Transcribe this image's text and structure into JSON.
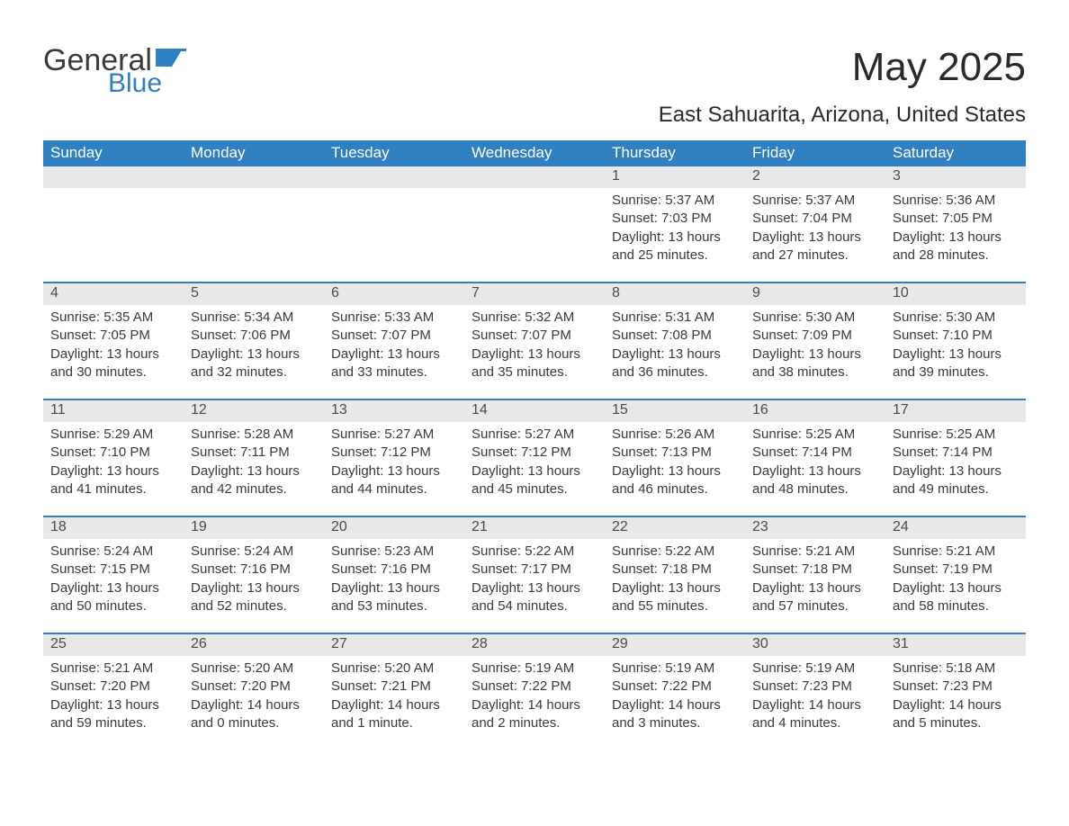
{
  "logo": {
    "text_general": "General",
    "text_blue": "Blue",
    "flag_color": "#2f7fc1"
  },
  "title": "May 2025",
  "location": "East Sahuarita, Arizona, United States",
  "colors": {
    "header_bg": "#2f7fc1",
    "header_text": "#ffffff",
    "daynum_bg": "#e8e8e8",
    "body_text": "#3a3a3a",
    "background": "#ffffff",
    "row_divider": "#2f7fc1"
  },
  "typography": {
    "title_fontsize": 44,
    "location_fontsize": 24,
    "weekday_fontsize": 17,
    "daynum_fontsize": 16,
    "body_fontsize": 15
  },
  "weekdays": [
    "Sunday",
    "Monday",
    "Tuesday",
    "Wednesday",
    "Thursday",
    "Friday",
    "Saturday"
  ],
  "weeks": [
    [
      null,
      null,
      null,
      null,
      {
        "n": "1",
        "sunrise": "Sunrise: 5:37 AM",
        "sunset": "Sunset: 7:03 PM",
        "daylight": "Daylight: 13 hours and 25 minutes."
      },
      {
        "n": "2",
        "sunrise": "Sunrise: 5:37 AM",
        "sunset": "Sunset: 7:04 PM",
        "daylight": "Daylight: 13 hours and 27 minutes."
      },
      {
        "n": "3",
        "sunrise": "Sunrise: 5:36 AM",
        "sunset": "Sunset: 7:05 PM",
        "daylight": "Daylight: 13 hours and 28 minutes."
      }
    ],
    [
      {
        "n": "4",
        "sunrise": "Sunrise: 5:35 AM",
        "sunset": "Sunset: 7:05 PM",
        "daylight": "Daylight: 13 hours and 30 minutes."
      },
      {
        "n": "5",
        "sunrise": "Sunrise: 5:34 AM",
        "sunset": "Sunset: 7:06 PM",
        "daylight": "Daylight: 13 hours and 32 minutes."
      },
      {
        "n": "6",
        "sunrise": "Sunrise: 5:33 AM",
        "sunset": "Sunset: 7:07 PM",
        "daylight": "Daylight: 13 hours and 33 minutes."
      },
      {
        "n": "7",
        "sunrise": "Sunrise: 5:32 AM",
        "sunset": "Sunset: 7:07 PM",
        "daylight": "Daylight: 13 hours and 35 minutes."
      },
      {
        "n": "8",
        "sunrise": "Sunrise: 5:31 AM",
        "sunset": "Sunset: 7:08 PM",
        "daylight": "Daylight: 13 hours and 36 minutes."
      },
      {
        "n": "9",
        "sunrise": "Sunrise: 5:30 AM",
        "sunset": "Sunset: 7:09 PM",
        "daylight": "Daylight: 13 hours and 38 minutes."
      },
      {
        "n": "10",
        "sunrise": "Sunrise: 5:30 AM",
        "sunset": "Sunset: 7:10 PM",
        "daylight": "Daylight: 13 hours and 39 minutes."
      }
    ],
    [
      {
        "n": "11",
        "sunrise": "Sunrise: 5:29 AM",
        "sunset": "Sunset: 7:10 PM",
        "daylight": "Daylight: 13 hours and 41 minutes."
      },
      {
        "n": "12",
        "sunrise": "Sunrise: 5:28 AM",
        "sunset": "Sunset: 7:11 PM",
        "daylight": "Daylight: 13 hours and 42 minutes."
      },
      {
        "n": "13",
        "sunrise": "Sunrise: 5:27 AM",
        "sunset": "Sunset: 7:12 PM",
        "daylight": "Daylight: 13 hours and 44 minutes."
      },
      {
        "n": "14",
        "sunrise": "Sunrise: 5:27 AM",
        "sunset": "Sunset: 7:12 PM",
        "daylight": "Daylight: 13 hours and 45 minutes."
      },
      {
        "n": "15",
        "sunrise": "Sunrise: 5:26 AM",
        "sunset": "Sunset: 7:13 PM",
        "daylight": "Daylight: 13 hours and 46 minutes."
      },
      {
        "n": "16",
        "sunrise": "Sunrise: 5:25 AM",
        "sunset": "Sunset: 7:14 PM",
        "daylight": "Daylight: 13 hours and 48 minutes."
      },
      {
        "n": "17",
        "sunrise": "Sunrise: 5:25 AM",
        "sunset": "Sunset: 7:14 PM",
        "daylight": "Daylight: 13 hours and 49 minutes."
      }
    ],
    [
      {
        "n": "18",
        "sunrise": "Sunrise: 5:24 AM",
        "sunset": "Sunset: 7:15 PM",
        "daylight": "Daylight: 13 hours and 50 minutes."
      },
      {
        "n": "19",
        "sunrise": "Sunrise: 5:24 AM",
        "sunset": "Sunset: 7:16 PM",
        "daylight": "Daylight: 13 hours and 52 minutes."
      },
      {
        "n": "20",
        "sunrise": "Sunrise: 5:23 AM",
        "sunset": "Sunset: 7:16 PM",
        "daylight": "Daylight: 13 hours and 53 minutes."
      },
      {
        "n": "21",
        "sunrise": "Sunrise: 5:22 AM",
        "sunset": "Sunset: 7:17 PM",
        "daylight": "Daylight: 13 hours and 54 minutes."
      },
      {
        "n": "22",
        "sunrise": "Sunrise: 5:22 AM",
        "sunset": "Sunset: 7:18 PM",
        "daylight": "Daylight: 13 hours and 55 minutes."
      },
      {
        "n": "23",
        "sunrise": "Sunrise: 5:21 AM",
        "sunset": "Sunset: 7:18 PM",
        "daylight": "Daylight: 13 hours and 57 minutes."
      },
      {
        "n": "24",
        "sunrise": "Sunrise: 5:21 AM",
        "sunset": "Sunset: 7:19 PM",
        "daylight": "Daylight: 13 hours and 58 minutes."
      }
    ],
    [
      {
        "n": "25",
        "sunrise": "Sunrise: 5:21 AM",
        "sunset": "Sunset: 7:20 PM",
        "daylight": "Daylight: 13 hours and 59 minutes."
      },
      {
        "n": "26",
        "sunrise": "Sunrise: 5:20 AM",
        "sunset": "Sunset: 7:20 PM",
        "daylight": "Daylight: 14 hours and 0 minutes."
      },
      {
        "n": "27",
        "sunrise": "Sunrise: 5:20 AM",
        "sunset": "Sunset: 7:21 PM",
        "daylight": "Daylight: 14 hours and 1 minute."
      },
      {
        "n": "28",
        "sunrise": "Sunrise: 5:19 AM",
        "sunset": "Sunset: 7:22 PM",
        "daylight": "Daylight: 14 hours and 2 minutes."
      },
      {
        "n": "29",
        "sunrise": "Sunrise: 5:19 AM",
        "sunset": "Sunset: 7:22 PM",
        "daylight": "Daylight: 14 hours and 3 minutes."
      },
      {
        "n": "30",
        "sunrise": "Sunrise: 5:19 AM",
        "sunset": "Sunset: 7:23 PM",
        "daylight": "Daylight: 14 hours and 4 minutes."
      },
      {
        "n": "31",
        "sunrise": "Sunrise: 5:18 AM",
        "sunset": "Sunset: 7:23 PM",
        "daylight": "Daylight: 14 hours and 5 minutes."
      }
    ]
  ]
}
